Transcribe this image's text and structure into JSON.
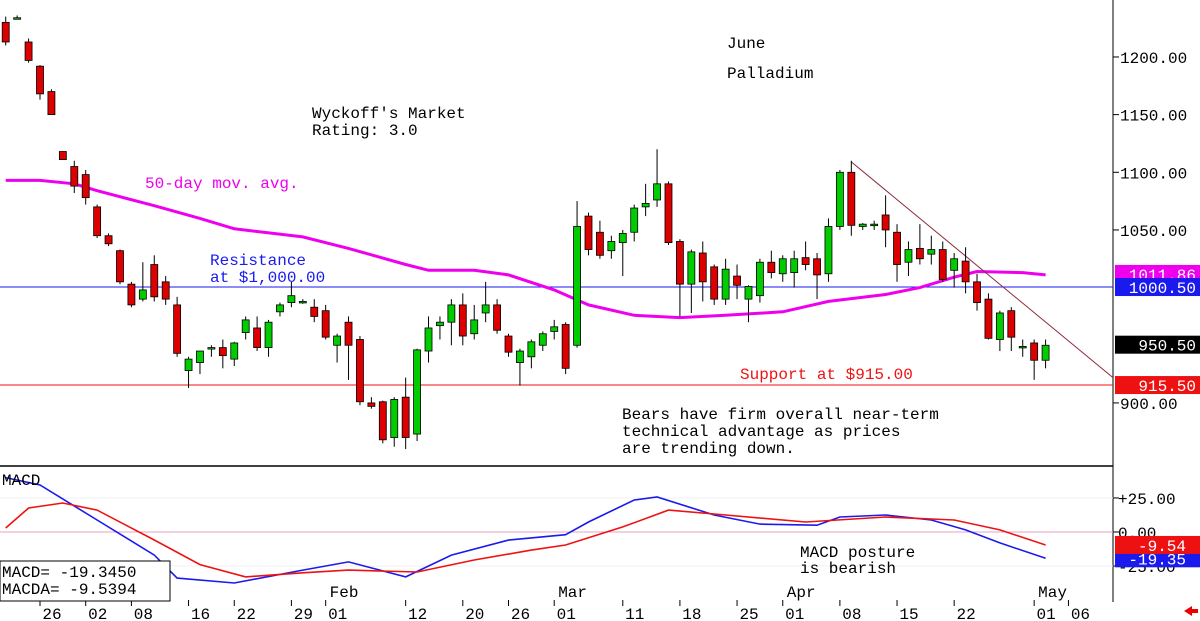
{
  "chart_data": [
    {
      "type": "candlestick",
      "title": [
        "June",
        "Palladium"
      ],
      "annotations": [
        {
          "lines": [
            "Wyckoff's Market",
            "Rating: 3.0"
          ]
        },
        {
          "lines": [
            "50-day mov. avg."
          ]
        },
        {
          "lines": [
            "Resistance",
            "at $1,000.00"
          ]
        },
        {
          "lines": [
            "Support at $915.00"
          ]
        },
        {
          "lines": [
            "Bears have firm overall near-term",
            "technical advantage as prices",
            "are trending down."
          ]
        }
      ],
      "xlim": [
        -0.5,
        96.9
      ],
      "ylim": [
        845.3,
        1249.4
      ],
      "yticks": [
        {
          "value": 1200,
          "label": "1200.00"
        },
        {
          "value": 1150,
          "label": "1150.00"
        },
        {
          "value": 1100,
          "label": "1100.00"
        },
        {
          "value": 1050,
          "label": "1050.00"
        },
        {
          "value": 900,
          "label": "900.00"
        }
      ],
      "xticks": [
        {
          "value": 3,
          "label": "26"
        },
        {
          "value": 7,
          "label": "02"
        },
        {
          "value": 11,
          "label": "08"
        },
        {
          "value": 16,
          "label": "16"
        },
        {
          "value": 20,
          "label": "22"
        },
        {
          "value": 25,
          "label": "29"
        },
        {
          "value": 28,
          "label": "01"
        },
        {
          "value": 35,
          "label": "12"
        },
        {
          "value": 40,
          "label": "20"
        },
        {
          "value": 44,
          "label": "26"
        },
        {
          "value": 48,
          "label": "01"
        },
        {
          "value": 54,
          "label": "11"
        },
        {
          "value": 59,
          "label": "18"
        },
        {
          "value": 64,
          "label": "25"
        },
        {
          "value": 68,
          "label": "01"
        },
        {
          "value": 73,
          "label": "08"
        },
        {
          "value": 78,
          "label": "15"
        },
        {
          "value": 83,
          "label": "22"
        },
        {
          "value": 90,
          "label": "01"
        },
        {
          "value": 93,
          "label": "06"
        }
      ],
      "months": [
        {
          "value": 28,
          "label": "Feb"
        },
        {
          "value": 48,
          "label": "Mar"
        },
        {
          "value": 68,
          "label": "Apr"
        },
        {
          "value": 90,
          "label": "May"
        }
      ],
      "up_color": "#00cc00",
      "down_color": "#dd0000",
      "x": [
        0,
        1,
        2,
        3,
        4,
        5,
        6,
        7,
        8,
        9,
        10,
        11,
        12,
        13,
        14,
        15,
        16,
        17,
        18,
        19,
        20,
        21,
        22,
        23,
        24,
        25,
        26,
        27,
        28,
        29,
        30,
        31,
        32,
        33,
        34,
        35,
        36,
        37,
        38,
        39,
        40,
        41,
        42,
        43,
        44,
        45,
        46,
        47,
        48,
        49,
        50,
        51,
        52,
        53,
        54,
        55,
        56,
        57,
        58,
        59,
        60,
        61,
        62,
        63,
        64,
        65,
        66,
        67,
        68,
        69,
        70,
        71,
        72,
        73,
        74,
        75,
        76,
        77,
        78,
        79,
        80,
        81,
        82,
        83,
        84,
        85,
        86,
        87,
        88,
        89,
        90,
        91
      ],
      "open": [
        1230,
        1234,
        1213,
        1192,
        1170,
        1118,
        1105,
        1098,
        1070,
        1045,
        1032,
        1003,
        990,
        1020,
        1005,
        985,
        928,
        935,
        947,
        948,
        938,
        961,
        965,
        948,
        979,
        987,
        988,
        983,
        980,
        950,
        970,
        955,
        900,
        901,
        870,
        905,
        873,
        945,
        967,
        970,
        985,
        960,
        978,
        985,
        958,
        935,
        940,
        950,
        962,
        968,
        950,
        1062,
        1048,
        1032,
        1039,
        1048,
        1070,
        1076,
        1090,
        1040,
        1003,
        1030,
        1018,
        990,
        1010,
        990,
        993,
        1022,
        1012,
        1013,
        1026,
        1025,
        1012,
        1053,
        1100,
        1053,
        1054,
        1063,
        1048,
        1022,
        1034,
        1029,
        1033,
        1015,
        1023,
        1005,
        990,
        955,
        980,
        948,
        952,
        937
      ],
      "high": [
        1235,
        1236,
        1216,
        1193,
        1172,
        1118,
        1110,
        1102,
        1072,
        1047,
        1033,
        1005,
        1022,
        1028,
        1010,
        992,
        940,
        945,
        950,
        955,
        953,
        975,
        975,
        972,
        987,
        1005,
        990,
        990,
        985,
        960,
        975,
        958,
        905,
        902,
        905,
        922,
        947,
        975,
        975,
        990,
        995,
        985,
        1005,
        990,
        960,
        947,
        955,
        962,
        972,
        970,
        1075,
        1065,
        1058,
        1045,
        1050,
        1072,
        1090,
        1120,
        1092,
        1042,
        1033,
        1040,
        1020,
        1025,
        1020,
        1002,
        1025,
        1032,
        1028,
        1032,
        1040,
        1030,
        1060,
        1102,
        1110,
        1056,
        1058,
        1080,
        1055,
        1040,
        1055,
        1045,
        1040,
        1030,
        1035,
        1012,
        995,
        980,
        983,
        955,
        955,
        955
      ],
      "low": [
        1210,
        1233,
        1195,
        1163,
        1150,
        1111,
        1082,
        1072,
        1043,
        1036,
        1003,
        983,
        988,
        988,
        985,
        940,
        913,
        925,
        940,
        930,
        932,
        955,
        945,
        940,
        975,
        983,
        986,
        970,
        955,
        935,
        920,
        898,
        895,
        865,
        862,
        860,
        867,
        935,
        955,
        950,
        950,
        955,
        970,
        960,
        940,
        915,
        930,
        945,
        955,
        925,
        948,
        1028,
        1025,
        1025,
        1010,
        1040,
        1062,
        1070,
        1037,
        975,
        978,
        988,
        985,
        985,
        990,
        970,
        987,
        1008,
        1005,
        1000,
        1015,
        990,
        1005,
        1050,
        1045,
        1050,
        1050,
        1035,
        1005,
        1010,
        1020,
        1020,
        1005,
        1000,
        995,
        980,
        955,
        945,
        945,
        940,
        920,
        930
      ],
      "close": [
        1213,
        1234,
        1197,
        1168,
        1150,
        1111,
        1088,
        1078,
        1045,
        1038,
        1005,
        985,
        998,
        992,
        990,
        943,
        938,
        945,
        948,
        941,
        952,
        972,
        948,
        970,
        985,
        993,
        988,
        975,
        957,
        958,
        950,
        901,
        897,
        868,
        903,
        870,
        946,
        965,
        970,
        985,
        958,
        972,
        985,
        963,
        944,
        945,
        953,
        960,
        966,
        930,
        1053,
        1033,
        1028,
        1040,
        1047,
        1069,
        1073,
        1090,
        1039,
        1003,
        1031,
        1005,
        990,
        1016,
        1002,
        1001,
        1022,
        1013,
        1025,
        1025,
        1020,
        1011,
        1053,
        1100,
        1054,
        1055,
        1055,
        1050,
        1020,
        1033,
        1025,
        1033,
        1007,
        1025,
        1005,
        987,
        956,
        978,
        957,
        949,
        937,
        950
      ],
      "moving_average": {
        "color": "#ee00ee",
        "x": [
          0,
          3,
          6,
          8,
          13,
          17,
          20,
          26,
          30,
          35,
          37,
          41,
          44,
          48,
          51,
          55,
          59,
          63,
          68,
          72,
          77,
          80,
          83,
          85,
          89,
          91
        ],
        "values": [
          1093,
          1093,
          1090,
          1084,
          1071,
          1060,
          1051,
          1044,
          1034,
          1020,
          1015,
          1015,
          1011,
          998,
          985,
          976,
          974,
          976,
          979,
          988,
          994,
          1000,
          1009,
          1014,
          1013,
          1011
        ]
      },
      "trendline": {
        "color": "#8b2a3a",
        "x": [
          74,
          96.9
        ],
        "values": [
          1109,
          922
        ]
      },
      "price_labels": [
        {
          "value": 1011.86,
          "label": "1011.86",
          "color": "#ee00ee"
        },
        {
          "value": 1000.5,
          "label": "1000.50",
          "color": "#1a1aee"
        },
        {
          "value": 950.5,
          "label": "950.50",
          "color": "#000000"
        },
        {
          "value": 915.5,
          "label": "915.50",
          "color": "#ee1111"
        }
      ]
    },
    {
      "type": "line",
      "title": "MACD",
      "annotations": [
        {
          "lines": [
            "MACD posture",
            "is bearish"
          ]
        }
      ],
      "xlim": [
        -0.5,
        96.9
      ],
      "ylim": [
        -50,
        48.5
      ],
      "yticks": [
        {
          "value": 25,
          "label": "+25.00"
        },
        {
          "value": 0,
          "label": "0.00"
        },
        {
          "value": -25,
          "label": "-25.00"
        }
      ],
      "legend_labels": [
        "MACD= -19.3450",
        "MACDA= -9.5394"
      ],
      "series": [
        {
          "name": "MACD",
          "color": "#1a1aee",
          "x": [
            0,
            3,
            8,
            13,
            15,
            20,
            26,
            30,
            35,
            39,
            44,
            49,
            51,
            55,
            57,
            62,
            66,
            71,
            73,
            77,
            81,
            84,
            87,
            91
          ],
          "values": [
            40,
            34.5,
            8.8,
            -17,
            -33.9,
            -37.5,
            -28,
            -22,
            -33,
            -17,
            -6,
            -2,
            7.3,
            23.5,
            25.7,
            12.5,
            5.8,
            5,
            11,
            12.5,
            8.8,
            1.5,
            -8,
            -19.35
          ],
          "last_label": "-19.35"
        },
        {
          "name": "MACDA",
          "color": "#ee1111",
          "x": [
            0,
            2,
            5,
            8,
            13,
            17,
            21,
            26,
            30,
            36,
            41,
            46,
            49,
            54,
            58,
            63,
            70,
            77,
            83,
            87,
            91
          ],
          "values": [
            2.9,
            17.6,
            21.3,
            16.1,
            -5.9,
            -24,
            -33,
            -30,
            -28,
            -29.4,
            -20.6,
            -13.3,
            -9.6,
            3.7,
            16.1,
            12.5,
            7.3,
            11,
            8.8,
            1.5,
            -9.54
          ],
          "last_label": "-9.54"
        }
      ]
    }
  ]
}
